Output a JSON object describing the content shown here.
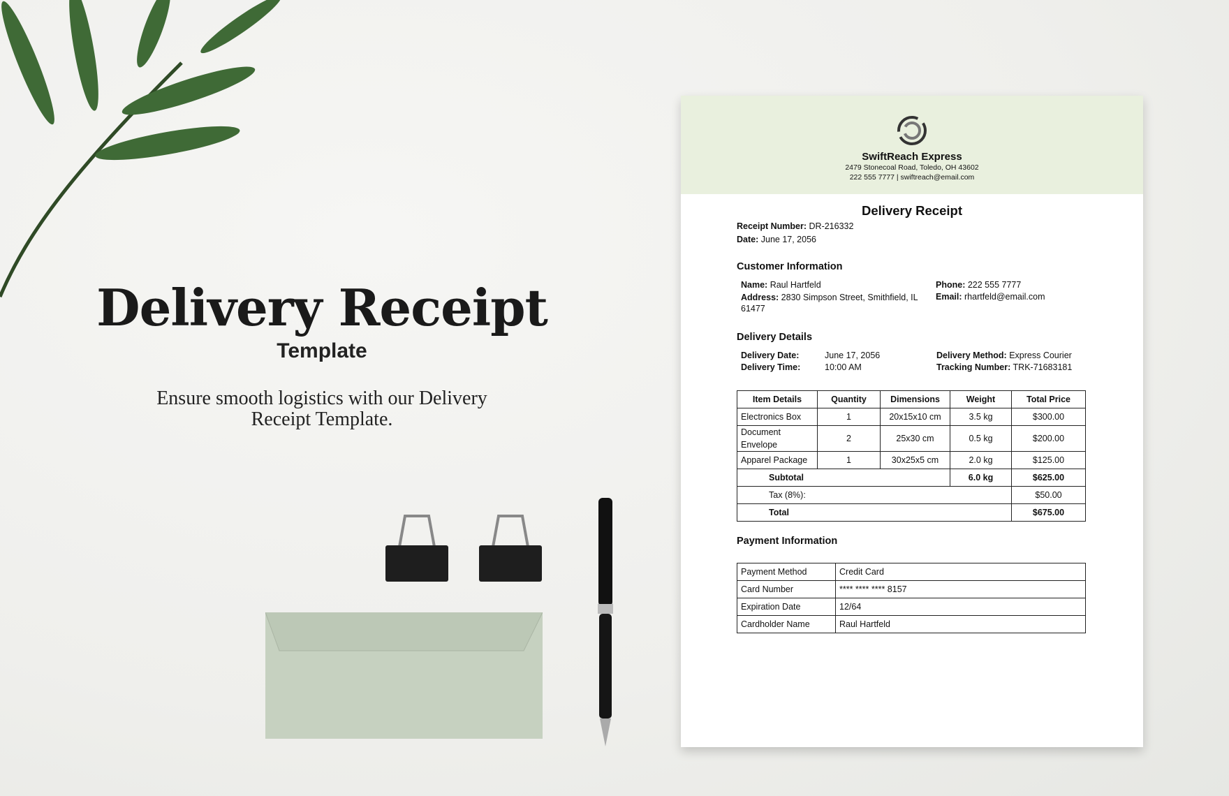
{
  "hero": {
    "title": "Delivery Receipt",
    "subtitle": "Template",
    "tagline": "Ensure smooth logistics with our Delivery Receipt Template."
  },
  "company": {
    "name": "SwiftReach Express",
    "address": "2479 Stonecoal Road, Toledo, OH 43602",
    "contact": "222 555 7777 | swiftreach@email.com",
    "header_color": "#e9f0de"
  },
  "receipt": {
    "title": "Delivery Receipt",
    "number_label": "Receipt Number:",
    "number": "DR-216332",
    "date_label": "Date:",
    "date": "June 17, 2056"
  },
  "customer": {
    "heading": "Customer Information",
    "name_label": "Name:",
    "name": "Raul Hartfeld",
    "address_label": "Address:",
    "address": "2830 Simpson Street, Smithfield, IL 61477",
    "phone_label": "Phone:",
    "phone": "222 555 7777",
    "email_label": "Email:",
    "email": "rhartfeld@email.com"
  },
  "delivery": {
    "heading": "Delivery Details",
    "date_label": "Delivery Date:",
    "date": "June 17, 2056",
    "time_label": "Delivery Time:",
    "time": "10:00 AM",
    "method_label": "Delivery Method:",
    "method": "Express Courier",
    "tracking_label": "Tracking Number:",
    "tracking": "TRK-71683181"
  },
  "items": {
    "headers": [
      "Item Details",
      "Quantity",
      "Dimensions",
      "Weight",
      "Total Price"
    ],
    "rows": [
      [
        "Electronics Box",
        "1",
        "20x15x10 cm",
        "3.5 kg",
        "$300.00"
      ],
      [
        "Document Envelope",
        "2",
        "25x30 cm",
        "0.5 kg",
        "$200.00"
      ],
      [
        "Apparel Package",
        "1",
        "30x25x5 cm",
        "2.0 kg",
        "$125.00"
      ]
    ],
    "subtotal_label": "Subtotal",
    "subtotal_weight": "6.0 kg",
    "subtotal": "$625.00",
    "tax_label": "Tax (8%):",
    "tax": "$50.00",
    "total_label": "Total",
    "total": "$675.00"
  },
  "payment": {
    "heading": "Payment Information",
    "rows": [
      [
        "Payment Method",
        "Credit Card"
      ],
      [
        "Card Number",
        "**** **** **** 8157"
      ],
      [
        "Expiration Date",
        "12/64"
      ],
      [
        "Cardholder Name",
        "Raul Hartfeld"
      ]
    ]
  }
}
